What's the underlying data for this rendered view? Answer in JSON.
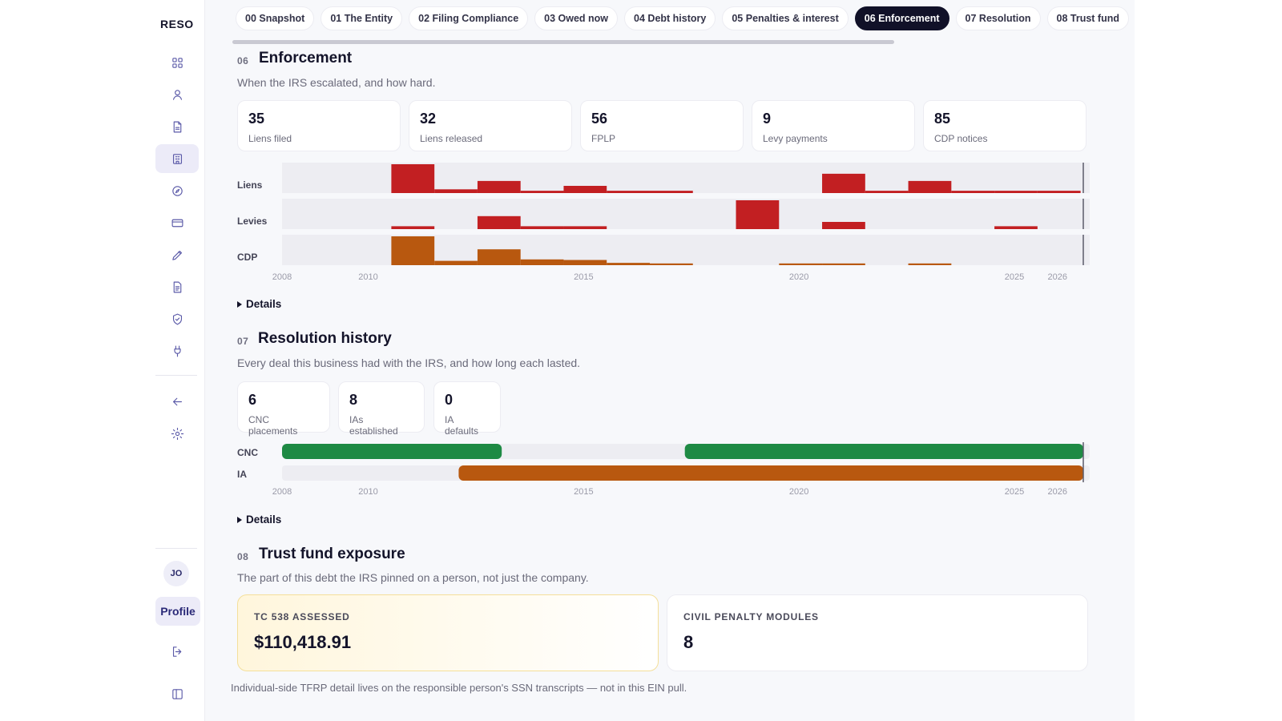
{
  "brand": "RESO",
  "colors": {
    "lien": "#c21f22",
    "levy": "#c21f22",
    "cdp": "#b8580f",
    "cnc": "#1e8a44",
    "ia": "#b8580f",
    "accent": "#111128"
  },
  "sidebar": {
    "items": [
      {
        "icon": "dashboard-icon"
      },
      {
        "icon": "user-icon"
      },
      {
        "icon": "document-icon"
      },
      {
        "icon": "building-icon",
        "active": true
      },
      {
        "icon": "compass-icon"
      },
      {
        "icon": "credit-card-icon"
      },
      {
        "icon": "pen-icon"
      },
      {
        "icon": "file-text-icon"
      },
      {
        "icon": "shield-icon"
      },
      {
        "icon": "plug-icon"
      }
    ],
    "back_icon": "arrow-left-icon",
    "settings_icon": "gear-icon",
    "avatar_initials": "JO",
    "profile_label": "Profile",
    "logout_icon": "logout-icon",
    "collapse_icon": "sidebar-toggle-icon"
  },
  "tabs": [
    {
      "label": "00 Snapshot"
    },
    {
      "label": "01 The Entity"
    },
    {
      "label": "02 Filing Compliance"
    },
    {
      "label": "03 Owed now"
    },
    {
      "label": "04 Debt history"
    },
    {
      "label": "05 Penalties & interest"
    },
    {
      "label": "06 Enforcement",
      "active": true
    },
    {
      "label": "07 Resolution"
    },
    {
      "label": "08 Trust fund"
    }
  ],
  "enforcement": {
    "num": "06",
    "title": "Enforcement",
    "subtitle": "When the IRS escalated, and how hard.",
    "stats": [
      {
        "value": "35",
        "label": "Liens filed"
      },
      {
        "value": "32",
        "label": "Liens released"
      },
      {
        "value": "56",
        "label": "FPLP"
      },
      {
        "value": "9",
        "label": "Levy payments"
      },
      {
        "value": "85",
        "label": "CDP notices"
      }
    ],
    "details_label": "Details"
  },
  "resolution": {
    "num": "07",
    "title": "Resolution history",
    "subtitle": "Every deal this business had with the IRS, and how long each lasted.",
    "stats": [
      {
        "value": "6",
        "label": "CNC placements"
      },
      {
        "value": "8",
        "label": "IAs established"
      },
      {
        "value": "0",
        "label": "IA defaults"
      }
    ],
    "details_label": "Details"
  },
  "trust_fund": {
    "num": "08",
    "title": "Trust fund exposure",
    "subtitle": "The part of this debt the IRS pinned on a person, not just the company.",
    "cards": [
      {
        "caption": "TC 538 ASSESSED",
        "value": "$110,418.91"
      },
      {
        "caption": "CIVIL PENALTY MODULES",
        "value": "8"
      }
    ],
    "note": "Individual-side TFRP detail lives on the responsible person's SSN transcripts — not in this EIN pull."
  },
  "chart_data": [
    {
      "type": "bar",
      "x_unit": "year",
      "xlim": [
        2008,
        2026.6
      ],
      "x_ticks": [
        "2008",
        "2010",
        "2015",
        "2020",
        "2025",
        "2026"
      ],
      "bin_width_years": 1,
      "current_marker": 2026.6,
      "series": [
        {
          "name": "Liens",
          "color": "#c21f22",
          "bars": [
            {
              "x": 2011,
              "v": 1.0
            },
            {
              "x": 2012,
              "v": 0.13
            },
            {
              "x": 2013,
              "v": 0.42
            },
            {
              "x": 2014,
              "v": 0.08
            },
            {
              "x": 2015,
              "v": 0.25
            },
            {
              "x": 2016,
              "v": 0.08
            },
            {
              "x": 2017,
              "v": 0.08
            },
            {
              "x": 2021,
              "v": 0.67
            },
            {
              "x": 2022,
              "v": 0.08
            },
            {
              "x": 2023,
              "v": 0.42
            },
            {
              "x": 2024,
              "v": 0.08
            },
            {
              "x": 2025,
              "v": 0.08
            },
            {
              "x": 2026,
              "v": 0.08
            }
          ]
        },
        {
          "name": "Levies",
          "color": "#c21f22",
          "bars": [
            {
              "x": 2011,
              "v": 0.1
            },
            {
              "x": 2013,
              "v": 0.45
            },
            {
              "x": 2014,
              "v": 0.1
            },
            {
              "x": 2015,
              "v": 0.1
            },
            {
              "x": 2019,
              "v": 1.0
            },
            {
              "x": 2021,
              "v": 0.25
            },
            {
              "x": 2025,
              "v": 0.1
            }
          ]
        },
        {
          "name": "CDP",
          "color": "#b8580f",
          "bars": [
            {
              "x": 2011,
              "v": 1.0
            },
            {
              "x": 2012,
              "v": 0.15
            },
            {
              "x": 2013,
              "v": 0.55
            },
            {
              "x": 2014,
              "v": 0.2
            },
            {
              "x": 2015,
              "v": 0.18
            },
            {
              "x": 2016,
              "v": 0.08
            },
            {
              "x": 2017,
              "v": 0.06
            },
            {
              "x": 2020,
              "v": 0.06
            },
            {
              "x": 2021,
              "v": 0.06
            },
            {
              "x": 2023,
              "v": 0.06
            }
          ]
        }
      ]
    },
    {
      "type": "timeline",
      "x_unit": "year",
      "xlim": [
        2008,
        2026.6
      ],
      "x_ticks": [
        "2008",
        "2010",
        "2015",
        "2020",
        "2025",
        "2026"
      ],
      "current_marker": 2026.6,
      "series": [
        {
          "name": "CNC",
          "color": "#1e8a44",
          "spans": [
            [
              2008,
              2013.1
            ],
            [
              2017.35,
              2026.6
            ]
          ]
        },
        {
          "name": "IA",
          "color": "#b8580f",
          "spans": [
            [
              2012.1,
              2026.6
            ]
          ]
        }
      ]
    }
  ]
}
